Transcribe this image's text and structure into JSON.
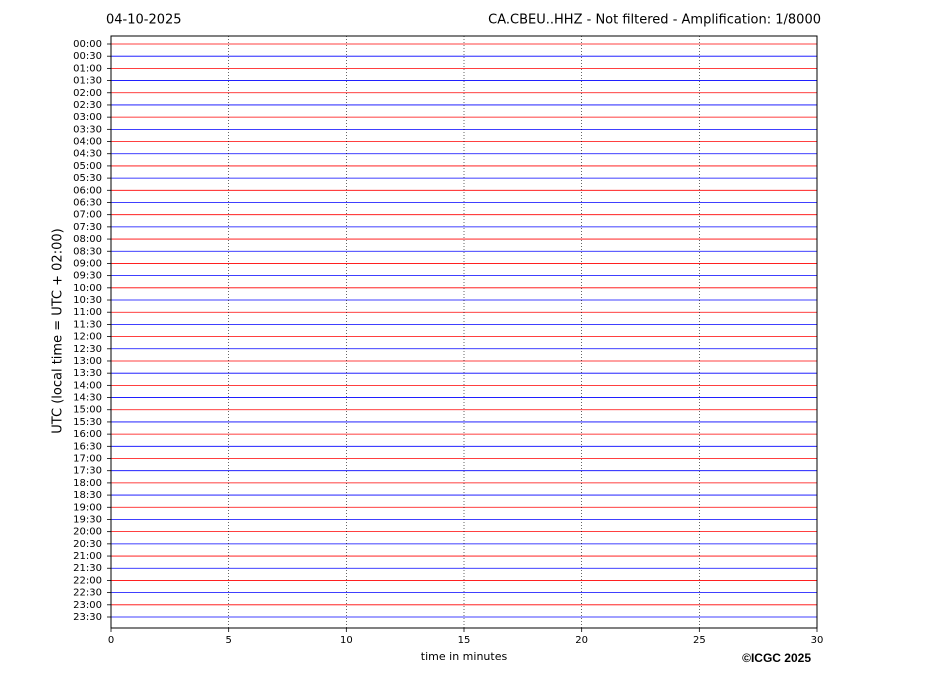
{
  "chart_data": {
    "type": "helicorder",
    "date": "04-10-2025",
    "title": "CA.CBEU..HHZ - Not filtered - Amplification: 1/8000",
    "ylabel": "UTC (local time = UTC + 02:00)",
    "xlabel": "time in minutes",
    "copyright": "©ICGC 2025",
    "categories": [
      "00:00",
      "00:30",
      "01:00",
      "01:30",
      "02:00",
      "02:30",
      "03:00",
      "03:30",
      "04:00",
      "04:30",
      "05:00",
      "05:30",
      "06:00",
      "06:30",
      "07:00",
      "07:30",
      "08:00",
      "08:30",
      "09:00",
      "09:30",
      "10:00",
      "10:30",
      "11:00",
      "11:30",
      "12:00",
      "12:30",
      "13:00",
      "13:30",
      "14:00",
      "14:30",
      "15:00",
      "15:30",
      "16:00",
      "16:30",
      "17:00",
      "17:30",
      "18:00",
      "18:30",
      "19:00",
      "19:30",
      "20:00",
      "20:30",
      "21:00",
      "21:30",
      "22:00",
      "22:30",
      "23:00",
      "23:30"
    ],
    "colors": [
      "#ff0000",
      "#0000ff"
    ],
    "xlim": [
      0,
      30
    ],
    "xticks": [
      0,
      5,
      10,
      15,
      20,
      25,
      30
    ],
    "grid": true
  }
}
